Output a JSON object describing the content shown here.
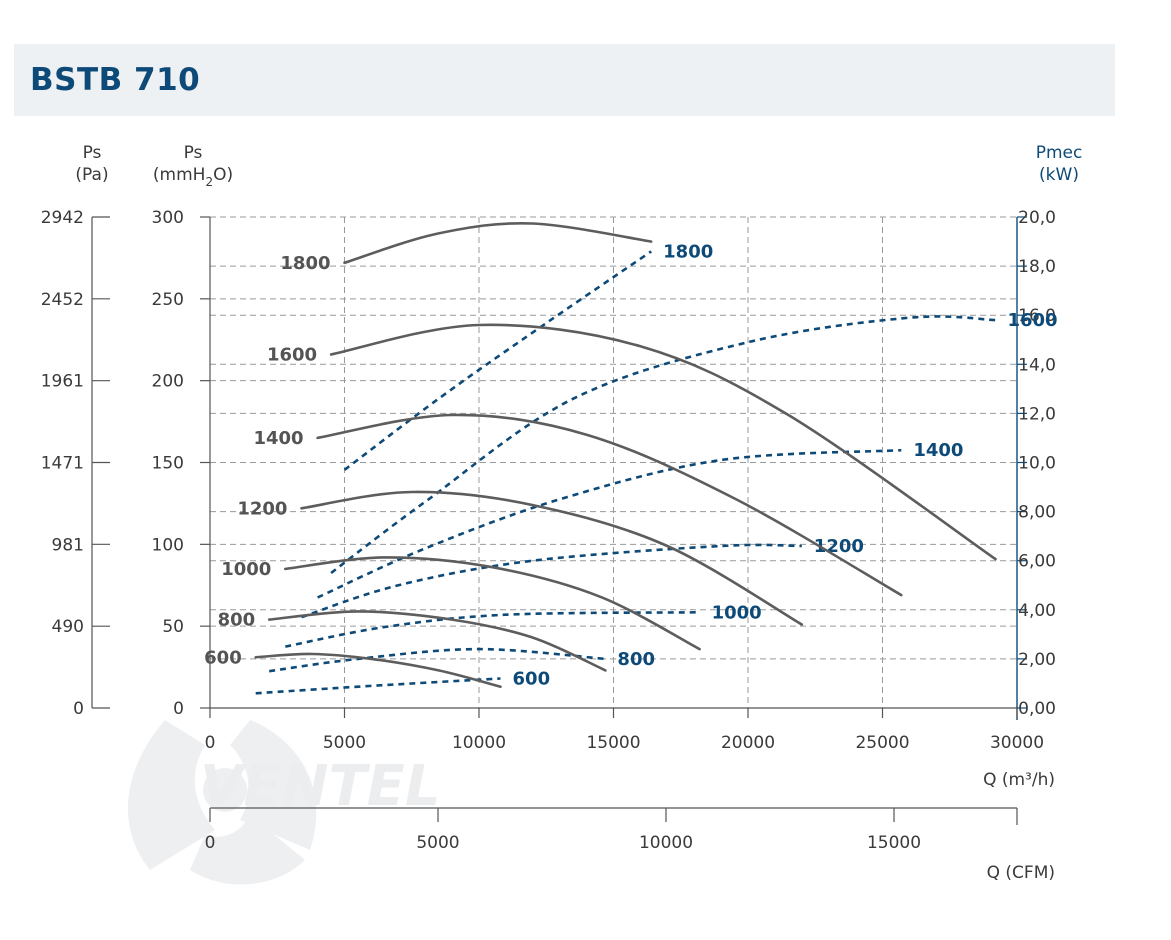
{
  "title": "BSTB 710",
  "chart_data": {
    "type": "line",
    "title": "BSTB 710",
    "x": {
      "label": "Q (m³/h)",
      "range": [
        0,
        30000
      ],
      "ticks": [
        0,
        5000,
        10000,
        15000,
        20000,
        25000,
        30000
      ]
    },
    "x_secondary": {
      "label": "Q (CFM)",
      "ticks": [
        0,
        5000,
        10000,
        15000
      ]
    },
    "y_left_pa": {
      "label_top": "Ps",
      "label_unit": "(Pa)",
      "ticks": [
        "0",
        "490",
        "981",
        "1471",
        "1961",
        "2452",
        "2942"
      ]
    },
    "y_left": {
      "label_top": "Ps",
      "label_unit_prefix": "(mmH",
      "label_unit_sub": "2",
      "label_unit_suffix": "O)",
      "range": [
        0,
        300
      ],
      "ticks": [
        "0",
        "50",
        "100",
        "150",
        "200",
        "250",
        "300"
      ]
    },
    "y_right": {
      "label_top": "Pmec",
      "label_unit": "(kW)",
      "range": [
        0,
        20
      ],
      "ticks": [
        "0,00",
        "2,00",
        "4,00",
        "6,00",
        "8,00",
        "10,0",
        "12,0",
        "14,0",
        "16,0",
        "18,0",
        "20,0"
      ]
    },
    "pressure_series": [
      {
        "name": "600",
        "points": [
          [
            1700,
            31
          ],
          [
            3800,
            33
          ],
          [
            6000,
            30
          ],
          [
            8500,
            23
          ],
          [
            10800,
            13
          ]
        ]
      },
      {
        "name": "800",
        "points": [
          [
            2200,
            54
          ],
          [
            5500,
            59
          ],
          [
            9000,
            54
          ],
          [
            12000,
            43
          ],
          [
            14700,
            23
          ]
        ]
      },
      {
        "name": "1000",
        "points": [
          [
            2800,
            85
          ],
          [
            6500,
            92
          ],
          [
            10500,
            86
          ],
          [
            14500,
            68
          ],
          [
            18200,
            36
          ]
        ]
      },
      {
        "name": "1200",
        "points": [
          [
            3400,
            122
          ],
          [
            7500,
            132
          ],
          [
            12000,
            124
          ],
          [
            17000,
            99
          ],
          [
            22000,
            51
          ]
        ]
      },
      {
        "name": "1400",
        "points": [
          [
            4000,
            165
          ],
          [
            9000,
            179
          ],
          [
            14000,
            167
          ],
          [
            19500,
            128
          ],
          [
            25700,
            69
          ]
        ]
      },
      {
        "name": "1600",
        "points": [
          [
            4500,
            216
          ],
          [
            10000,
            234
          ],
          [
            16000,
            221
          ],
          [
            21500,
            179
          ],
          [
            29200,
            91
          ]
        ]
      },
      {
        "name": "1800",
        "points": [
          [
            5000,
            272
          ],
          [
            8500,
            290
          ],
          [
            12000,
            296
          ],
          [
            16400,
            285
          ]
        ]
      }
    ],
    "power_series": [
      {
        "name": "600",
        "points": [
          [
            1700,
            0.6
          ],
          [
            4500,
            0.8
          ],
          [
            7500,
            1.0
          ],
          [
            10800,
            1.2
          ]
        ]
      },
      {
        "name": "800",
        "points": [
          [
            2200,
            1.5
          ],
          [
            5500,
            2.0
          ],
          [
            10000,
            2.4
          ],
          [
            14700,
            2.0
          ]
        ]
      },
      {
        "name": "1000",
        "points": [
          [
            2800,
            2.5
          ],
          [
            6500,
            3.3
          ],
          [
            11000,
            3.8
          ],
          [
            18200,
            3.9
          ]
        ]
      },
      {
        "name": "1200",
        "points": [
          [
            3400,
            3.7
          ],
          [
            7000,
            5.0
          ],
          [
            12000,
            6.0
          ],
          [
            19000,
            6.6
          ],
          [
            22000,
            6.6
          ]
        ]
      },
      {
        "name": "1400",
        "points": [
          [
            4000,
            4.5
          ],
          [
            8000,
            6.5
          ],
          [
            13000,
            8.5
          ],
          [
            19000,
            10.1
          ],
          [
            25700,
            10.5
          ]
        ]
      },
      {
        "name": "1600",
        "points": [
          [
            4500,
            5.5
          ],
          [
            8000,
            8.4
          ],
          [
            13500,
            12.6
          ],
          [
            20000,
            14.9
          ],
          [
            26000,
            15.9
          ],
          [
            29200,
            15.8
          ]
        ]
      },
      {
        "name": "1800",
        "points": [
          [
            5000,
            9.7
          ],
          [
            8500,
            12.6
          ],
          [
            12000,
            15.3
          ],
          [
            16400,
            18.6
          ]
        ]
      }
    ]
  },
  "colors": {
    "pressure": "#5d5d5d",
    "power": "#0e4a78",
    "title": "#0e4a78",
    "header_bg": "#eef1f4"
  }
}
